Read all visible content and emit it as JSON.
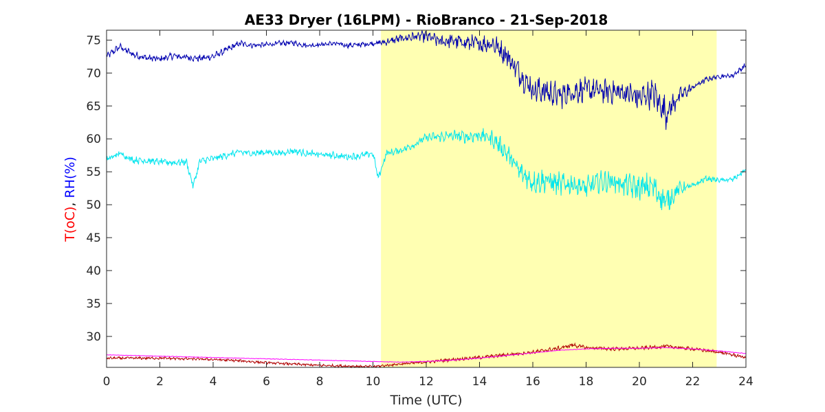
{
  "chart_data": {
    "type": "line",
    "title": "AE33 Dryer (16LPM)  - RioBranco - 21-Sep-2018",
    "xlabel": "Time (UTC)",
    "ylabel_parts": [
      {
        "text": "T(oC)",
        "color": "#ff0000"
      },
      {
        "text": ", ",
        "color": "#000000"
      },
      {
        "text": "RH(%)",
        "color": "#0000ff"
      }
    ],
    "xlim": [
      0,
      24
    ],
    "ylim": [
      25.3,
      76.5
    ],
    "xticks": [
      0,
      2,
      4,
      6,
      8,
      10,
      12,
      14,
      16,
      18,
      20,
      22,
      24
    ],
    "yticks": [
      30,
      35,
      40,
      45,
      50,
      55,
      60,
      65,
      70,
      75
    ],
    "grid": false,
    "highlight_region": {
      "x_start": 10.3,
      "x_end": 22.9,
      "color": "#ffffb2"
    },
    "series": [
      {
        "color": "#0000b0",
        "x": [
          0,
          0.5,
          1,
          1.5,
          2,
          2.5,
          3,
          3.5,
          4,
          4.5,
          5,
          5.5,
          6,
          6.5,
          7,
          7.5,
          8,
          8.5,
          9,
          9.5,
          10,
          10.5,
          11,
          11.5,
          12,
          12.5,
          13,
          13.5,
          14,
          14.5,
          15,
          15.5,
          16,
          16.5,
          17,
          17.5,
          18,
          18.5,
          19,
          19.5,
          20,
          20.5,
          21,
          21.5,
          22,
          22.5,
          23,
          23.5,
          24
        ],
        "y": [
          72.5,
          74,
          72.8,
          72.3,
          72.1,
          72.6,
          72.4,
          72.2,
          72.5,
          73.5,
          74.5,
          74.2,
          74.3,
          74.5,
          74.6,
          74.2,
          74.3,
          74.5,
          74.2,
          74.3,
          74.5,
          74.7,
          75.2,
          75.5,
          75.6,
          74.8,
          74.9,
          74.6,
          74.4,
          74.5,
          72.8,
          70,
          67.5,
          67.2,
          66.5,
          67.2,
          67.5,
          67.3,
          67.2,
          67,
          66.2,
          67,
          64,
          66.5,
          67.8,
          69,
          69.5,
          69.6,
          71.2
        ],
        "noise": [
          0.4,
          0.4,
          0.4,
          0.4,
          0.4,
          0.4,
          0.4,
          0.4,
          0.4,
          0.4,
          0.4,
          0.3,
          0.3,
          0.3,
          0.3,
          0.3,
          0.3,
          0.3,
          0.3,
          0.3,
          0.3,
          0.4,
          0.5,
          0.6,
          0.7,
          0.8,
          0.9,
          1.0,
          1.0,
          1.2,
          1.3,
          1.5,
          1.6,
          1.6,
          1.6,
          1.5,
          1.4,
          1.4,
          1.4,
          1.5,
          1.6,
          1.7,
          1.8,
          1.0,
          0.5,
          0.3,
          0.3,
          0.3,
          0.3
        ]
      },
      {
        "color": "#00e5ee",
        "x": [
          0,
          0.5,
          1,
          1.5,
          2,
          2.5,
          3,
          3.25,
          3.5,
          4,
          4.5,
          5,
          5.5,
          6,
          6.5,
          7,
          7.5,
          8,
          8.5,
          9,
          9.5,
          10,
          10.2,
          10.5,
          11,
          11.5,
          12,
          12.5,
          13,
          13.5,
          14,
          14.5,
          15,
          15.5,
          16,
          16.5,
          17,
          17.5,
          18,
          18.5,
          19,
          19.5,
          20,
          20.5,
          21,
          21.5,
          22,
          22.5,
          23,
          23.5,
          24
        ],
        "y": [
          56.8,
          57.8,
          56.8,
          56.7,
          56.5,
          56.4,
          56.5,
          52.8,
          56.6,
          57,
          57.5,
          58,
          57.8,
          58,
          57.8,
          58.2,
          57.8,
          57.6,
          57.5,
          57.3,
          57.4,
          57.8,
          54,
          57.8,
          58.2,
          59,
          60.2,
          60.3,
          60.5,
          60.3,
          60.6,
          60,
          58,
          55,
          53.5,
          53.7,
          53,
          53.2,
          52.5,
          53.5,
          53.6,
          53,
          52.5,
          52.8,
          50.3,
          52.5,
          52.8,
          54,
          53.7,
          53.8,
          55.3
        ],
        "noise": [
          0.4,
          0.4,
          0.4,
          0.4,
          0.4,
          0.4,
          0.4,
          0.4,
          0.4,
          0.4,
          0.4,
          0.4,
          0.4,
          0.4,
          0.4,
          0.4,
          0.4,
          0.4,
          0.4,
          0.4,
          0.4,
          0.4,
          0.4,
          0.4,
          0.4,
          0.4,
          0.5,
          0.6,
          0.7,
          0.7,
          0.8,
          1.0,
          1.1,
          1.3,
          1.4,
          1.4,
          1.4,
          1.3,
          1.3,
          1.2,
          1.3,
          1.4,
          1.5,
          1.6,
          1.6,
          0.8,
          0.4,
          0.3,
          0.3,
          0.3,
          0.3
        ]
      },
      {
        "color": "#b00000",
        "x": [
          0,
          1,
          2,
          3,
          4,
          5,
          6,
          7,
          8,
          9,
          10,
          10.5,
          11,
          12,
          13,
          14,
          15,
          16,
          17,
          17.5,
          18,
          19,
          20,
          21,
          22,
          23,
          24
        ],
        "y": [
          26.7,
          26.7,
          26.7,
          26.6,
          26.5,
          26.3,
          26,
          25.8,
          25.6,
          25.5,
          25.4,
          25.6,
          25.8,
          26.1,
          26.5,
          26.8,
          27.2,
          27.6,
          28.2,
          28.7,
          28.3,
          28.1,
          28.2,
          28.5,
          28.1,
          27.6,
          26.8
        ],
        "noise": [
          0.15,
          0.15,
          0.15,
          0.15,
          0.15,
          0.15,
          0.15,
          0.15,
          0.15,
          0.15,
          0.15,
          0.15,
          0.15,
          0.15,
          0.2,
          0.2,
          0.2,
          0.2,
          0.25,
          0.25,
          0.2,
          0.2,
          0.2,
          0.2,
          0.2,
          0.2,
          0.2
        ]
      },
      {
        "color": "#ff00ff",
        "x": [
          0,
          1,
          2,
          3,
          4,
          5,
          6,
          7,
          8,
          9,
          10,
          11,
          12,
          13,
          14,
          15,
          16,
          17,
          18,
          19,
          20,
          21,
          22,
          23,
          24
        ],
        "y": [
          27.2,
          27.1,
          27,
          26.9,
          26.8,
          26.7,
          26.6,
          26.5,
          26.4,
          26.3,
          26.2,
          26.1,
          26.2,
          26.4,
          26.7,
          27.1,
          27.5,
          27.9,
          28.1,
          28.2,
          28.2,
          28.3,
          28.1,
          27.8,
          27.4
        ],
        "noise": [
          0.03,
          0.03,
          0.03,
          0.03,
          0.03,
          0.03,
          0.03,
          0.03,
          0.03,
          0.03,
          0.03,
          0.03,
          0.03,
          0.03,
          0.03,
          0.03,
          0.03,
          0.03,
          0.03,
          0.03,
          0.03,
          0.03,
          0.03,
          0.03,
          0.03
        ]
      }
    ]
  }
}
